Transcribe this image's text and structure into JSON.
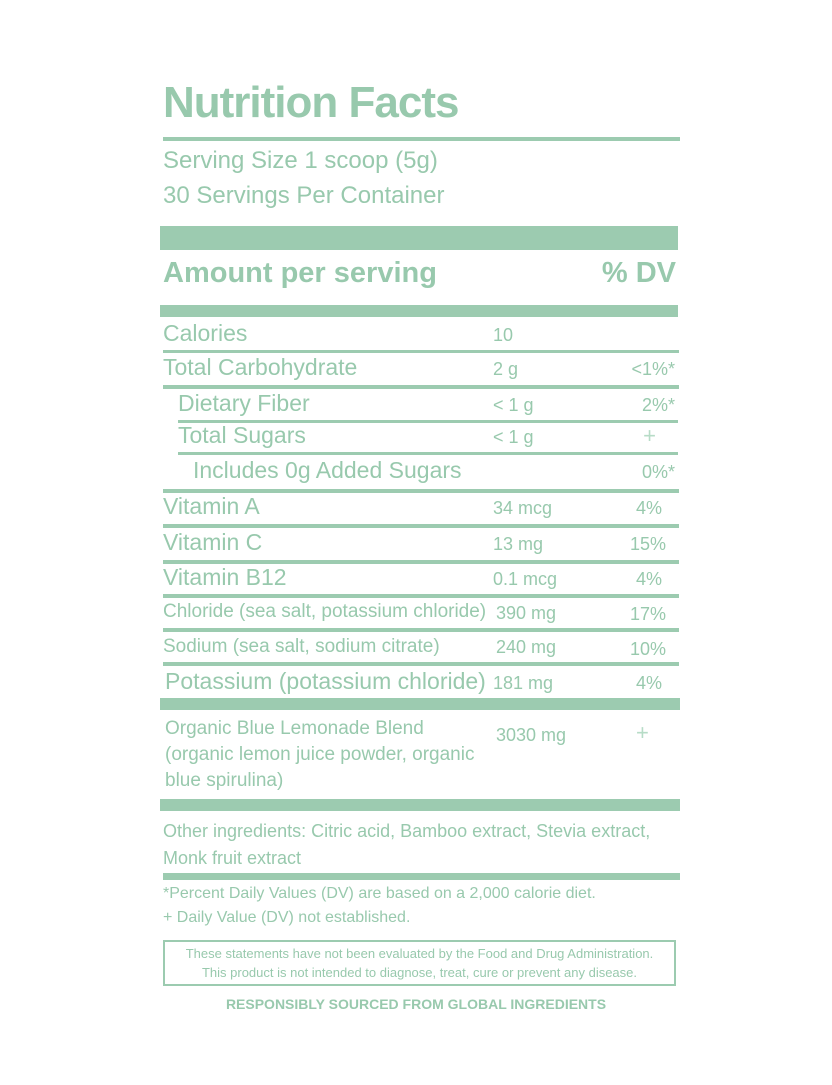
{
  "title": "Nutrition Facts",
  "serving_size": "Serving Size 1 scoop  (5g)",
  "servings_per_container": "30 Servings Per Container",
  "amount_per_serving": "Amount per serving",
  "dv_header": "% DV",
  "nutrients": [
    {
      "name": "Calories",
      "amount": "10",
      "dv": ""
    },
    {
      "name": "Total Carbohydrate",
      "amount": "2 g",
      "dv": "<1%*"
    },
    {
      "name": "Dietary Fiber",
      "amount": "< 1 g",
      "dv": "2%*"
    },
    {
      "name": "Total Sugars",
      "amount": "< 1 g",
      "dv": "+"
    },
    {
      "name": "Includes 0g Added Sugars",
      "amount": "",
      "dv": "0%*"
    },
    {
      "name": "Vitamin A",
      "amount": "34 mcg",
      "dv": "4%"
    },
    {
      "name": "Vitamin C",
      "amount": "13 mg",
      "dv": "15%"
    },
    {
      "name": "Vitamin B12",
      "amount": "0.1 mcg",
      "dv": "4%"
    },
    {
      "name": "Chloride (sea salt, potassium chloride)",
      "amount": "390 mg",
      "dv": "17%"
    },
    {
      "name": "Sodium (sea salt, sodium citrate)",
      "amount": "240 mg",
      "dv": "10%"
    },
    {
      "name": "Potassium (potassium chloride)",
      "amount": "181 mg",
      "dv": "4%"
    },
    {
      "name": "Organic Blue Lemonade Blend (organic lemon juice powder, organic blue spirulina)",
      "amount": "3030 mg",
      "dv": "+"
    }
  ],
  "other_ingredients": "Other ingredients: Citric acid, Bamboo extract, Stevia extract, Monk fruit extract",
  "footnote_dv": "*Percent Daily Values (DV) are based on a 2,000 calorie diet.",
  "footnote_dagger": "+ Daily Value (DV) not established.",
  "disclaimer_line1": "These statements have not been evaluated by the Food and Drug Administration.",
  "disclaimer_line2": "This product is not intended to diagnose, treat, cure or prevent any disease.",
  "sourced": "RESPONSIBLY SOURCED FROM GLOBAL INGREDIENTS",
  "colors": {
    "accent": "#9ccbb0",
    "text": "#98c9ad"
  }
}
